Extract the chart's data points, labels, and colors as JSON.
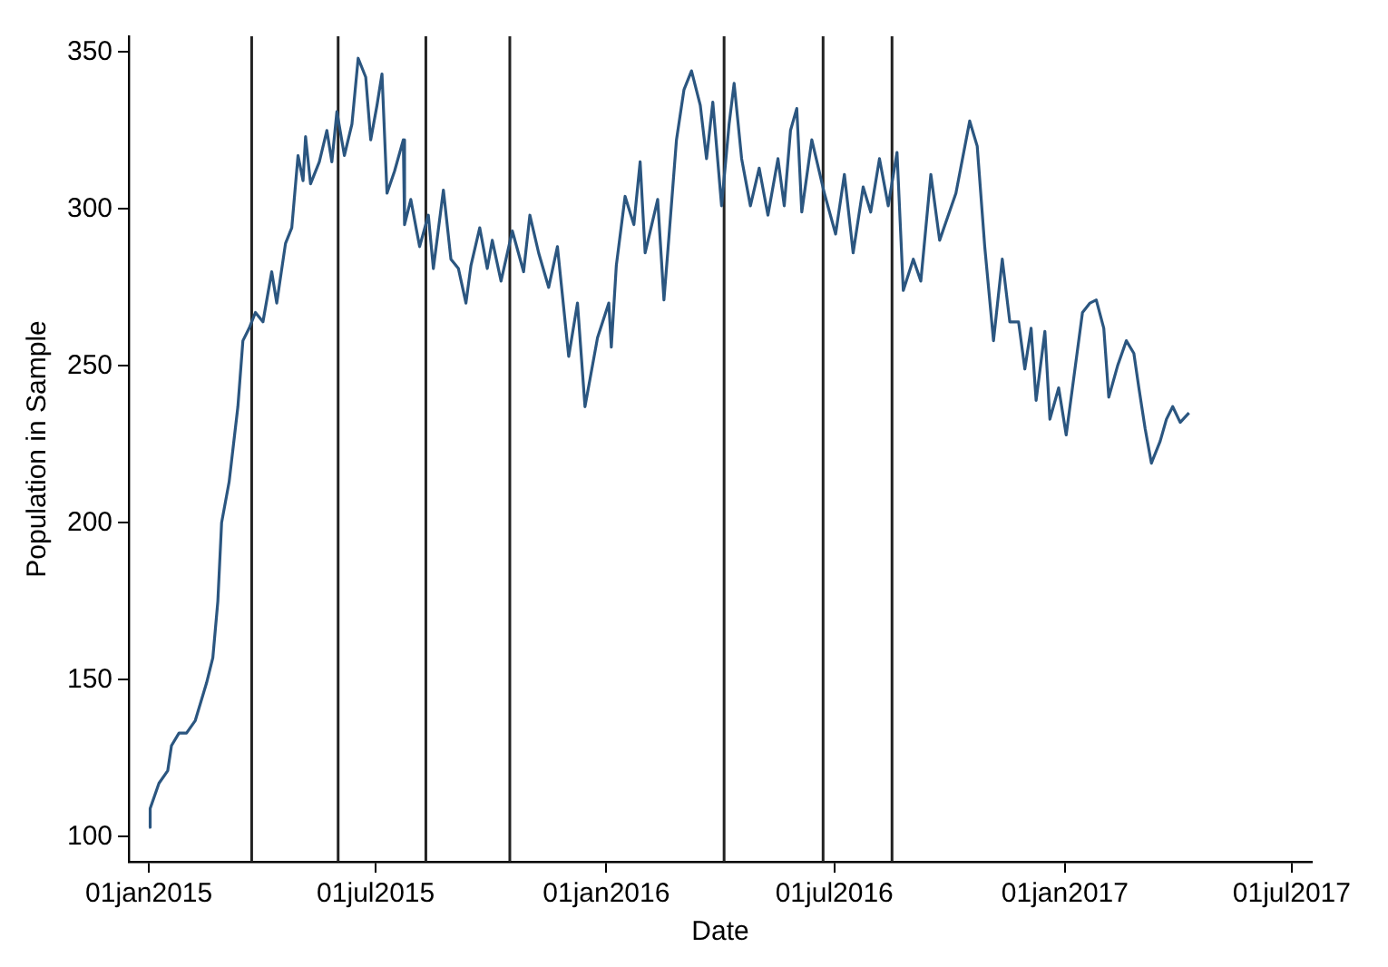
{
  "chart_data": {
    "type": "line",
    "xlabel": "Date",
    "ylabel": "Population in Sample",
    "x": [
      "2015-01-01",
      "2015-01-02",
      "2015-01-09",
      "2015-01-16",
      "2015-01-19",
      "2015-01-25",
      "2015-01-31",
      "2015-02-07",
      "2015-02-16",
      "2015-02-21",
      "2015-02-25",
      "2015-02-28",
      "2015-03-06",
      "2015-03-13",
      "2015-03-17",
      "2015-03-22",
      "2015-03-27",
      "2015-04-02",
      "2015-04-09",
      "2015-04-13",
      "2015-04-20",
      "2015-04-25",
      "2015-04-30",
      "2015-05-04",
      "2015-05-06",
      "2015-05-10",
      "2015-05-17",
      "2015-05-23",
      "2015-05-27",
      "2015-05-31",
      "2015-06-06",
      "2015-06-12",
      "2015-06-17",
      "2015-06-23",
      "2015-06-27",
      "2015-07-02",
      "2015-07-06",
      "2015-07-10",
      "2015-07-16",
      "2015-07-23",
      "2015-07-24",
      "2015-07-29",
      "2015-08-05",
      "2015-08-12",
      "2015-08-16",
      "2015-08-24",
      "2015-08-30",
      "2015-09-05",
      "2015-09-11",
      "2015-09-15",
      "2015-09-22",
      "2015-09-28",
      "2015-10-02",
      "2015-10-09",
      "2015-10-18",
      "2015-10-27",
      "2015-11-01",
      "2015-11-08",
      "2015-11-16",
      "2015-11-23",
      "2015-12-02",
      "2015-12-09",
      "2015-12-15",
      "2015-12-25",
      "2016-01-03",
      "2016-01-05",
      "2016-01-09",
      "2016-01-16",
      "2016-01-23",
      "2016-01-28",
      "2016-02-01",
      "2016-02-11",
      "2016-02-16",
      "2016-02-19",
      "2016-02-26",
      "2016-03-03",
      "2016-03-09",
      "2016-03-16",
      "2016-03-21",
      "2016-03-26",
      "2016-04-02",
      "2016-04-08",
      "2016-04-12",
      "2016-04-18",
      "2016-04-25",
      "2016-05-02",
      "2016-05-09",
      "2016-05-17",
      "2016-05-22",
      "2016-05-27",
      "2016-06-01",
      "2016-06-05",
      "2016-06-13",
      "2016-06-23",
      "2016-07-02",
      "2016-07-09",
      "2016-07-16",
      "2016-07-24",
      "2016-07-30",
      "2016-08-06",
      "2016-08-13",
      "2016-08-20",
      "2016-08-25",
      "2016-09-02",
      "2016-09-08",
      "2016-09-16",
      "2016-09-23",
      "2016-10-06",
      "2016-10-17",
      "2016-10-23",
      "2016-10-29",
      "2016-11-05",
      "2016-11-12",
      "2016-11-18",
      "2016-11-25",
      "2016-11-30",
      "2016-12-05",
      "2016-12-09",
      "2016-12-16",
      "2016-12-20",
      "2016-12-27",
      "2017-01-02",
      "2017-01-08",
      "2017-01-15",
      "2017-01-21",
      "2017-01-26",
      "2017-02-01",
      "2017-02-05",
      "2017-02-12",
      "2017-02-19",
      "2017-02-25",
      "2017-03-01",
      "2017-03-06",
      "2017-03-11",
      "2017-03-18",
      "2017-03-23",
      "2017-03-28",
      "2017-04-03",
      "2017-04-10"
    ],
    "series": [
      {
        "color": "#2b5680",
        "values": [
          103,
          109,
          117,
          121,
          129,
          133,
          133,
          137,
          149,
          157,
          175,
          200,
          213,
          237,
          258,
          262,
          267,
          264,
          280,
          270,
          289,
          294,
          317,
          309,
          323,
          308,
          315,
          325,
          315,
          331,
          317,
          327,
          348,
          342,
          322,
          333,
          343,
          305,
          312,
          322,
          295,
          303,
          288,
          298,
          281,
          306,
          284,
          281,
          270,
          282,
          294,
          281,
          290,
          277,
          293,
          280,
          298,
          286,
          275,
          288,
          253,
          270,
          237,
          259,
          270,
          256,
          282,
          304,
          295,
          315,
          286,
          303,
          271,
          286,
          322,
          338,
          344,
          333,
          316,
          334,
          301,
          327,
          340,
          316,
          301,
          313,
          298,
          316,
          301,
          325,
          332,
          299,
          322,
          305,
          292,
          311,
          286,
          307,
          299,
          316,
          301,
          318,
          274,
          284,
          277,
          311,
          290,
          305,
          328,
          320,
          288,
          258,
          284,
          264,
          264,
          249,
          262,
          239,
          261,
          233,
          243,
          228,
          246,
          267,
          270,
          271,
          262,
          240,
          250,
          258,
          254,
          243,
          230,
          219,
          226,
          233,
          237,
          232,
          235
        ]
      }
    ],
    "xlim": [
      "2014-12-16",
      "2017-07-17"
    ],
    "xticks": [
      {
        "value": "2015-01-01",
        "label": "01jan2015"
      },
      {
        "value": "2015-07-01",
        "label": "01jul2015"
      },
      {
        "value": "2016-01-01",
        "label": "01jan2016"
      },
      {
        "value": "2016-07-01",
        "label": "01jul2016"
      },
      {
        "value": "2017-01-01",
        "label": "01jan2017"
      },
      {
        "value": "2017-07-01",
        "label": "01jul2017"
      }
    ],
    "ylim": [
      92,
      355
    ],
    "yticks": [
      100,
      150,
      200,
      250,
      300,
      350
    ],
    "ref_lines": [
      {
        "axis": "x",
        "value": "2015-03-24",
        "color": "#222222"
      },
      {
        "axis": "x",
        "value": "2015-06-01",
        "color": "#222222"
      },
      {
        "axis": "x",
        "value": "2015-08-10",
        "color": "#222222"
      },
      {
        "axis": "x",
        "value": "2015-10-16",
        "color": "#222222"
      },
      {
        "axis": "x",
        "value": "2016-04-04",
        "color": "#222222"
      },
      {
        "axis": "x",
        "value": "2016-06-22",
        "color": "#222222"
      },
      {
        "axis": "x",
        "value": "2016-08-16",
        "color": "#222222"
      }
    ],
    "grid": false,
    "legend": false,
    "marker": "none",
    "line_style": "solid"
  }
}
